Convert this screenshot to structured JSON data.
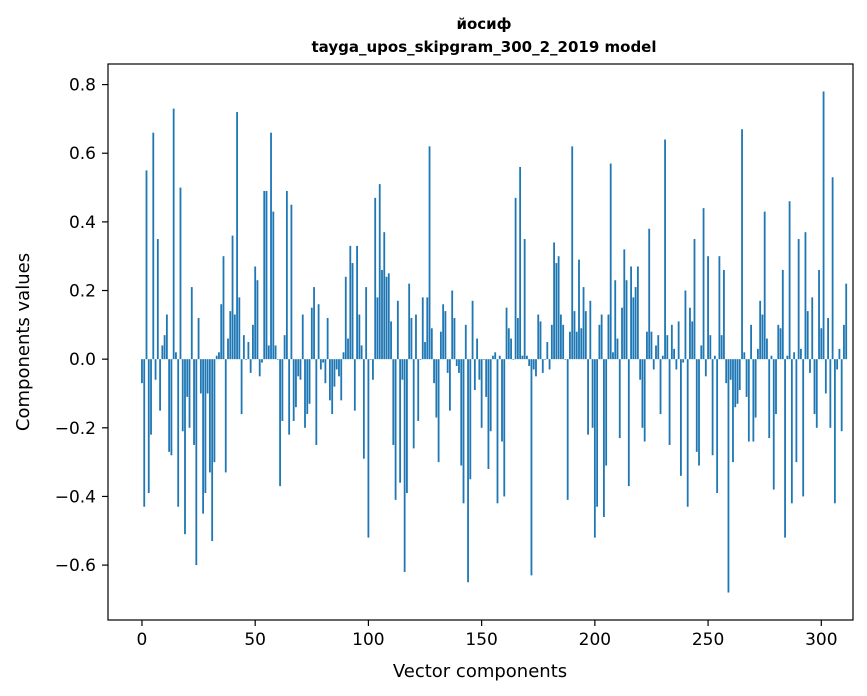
{
  "chart_data": {
    "type": "bar",
    "title": "йосиф",
    "subtitle": "tayga_upos_skipgram_300_2_2019 model",
    "xlabel": "Vector components",
    "ylabel": "Components values",
    "xlim": [
      -15,
      314
    ],
    "ylim": [
      -0.76,
      0.86
    ],
    "x_ticks": [
      {
        "value": 0,
        "label": "0"
      },
      {
        "value": 50,
        "label": "50"
      },
      {
        "value": 100,
        "label": "100"
      },
      {
        "value": 150,
        "label": "150"
      },
      {
        "value": 200,
        "label": "200"
      },
      {
        "value": 250,
        "label": "250"
      },
      {
        "value": 300,
        "label": "300"
      }
    ],
    "y_ticks": [
      {
        "value": -0.6,
        "label": "−0.6"
      },
      {
        "value": -0.4,
        "label": "−0.4"
      },
      {
        "value": -0.2,
        "label": "−0.2"
      },
      {
        "value": 0.0,
        "label": "0.0"
      },
      {
        "value": 0.2,
        "label": "0.2"
      },
      {
        "value": 0.4,
        "label": "0.4"
      },
      {
        "value": 0.6,
        "label": "0.6"
      },
      {
        "value": 0.8,
        "label": "0.8"
      }
    ],
    "bar_color": "#1f77b4",
    "grid": false,
    "values": [
      -0.07,
      -0.43,
      0.55,
      -0.39,
      -0.22,
      0.66,
      -0.06,
      0.35,
      -0.15,
      0.04,
      0.07,
      0.13,
      -0.27,
      -0.28,
      0.73,
      0.02,
      -0.43,
      0.5,
      -0.21,
      -0.51,
      -0.11,
      -0.2,
      0.21,
      -0.25,
      -0.6,
      0.12,
      -0.1,
      -0.45,
      -0.39,
      -0.1,
      -0.33,
      -0.53,
      -0.3,
      0.01,
      0.02,
      0.16,
      0.3,
      -0.33,
      0.06,
      0.14,
      0.36,
      0.13,
      0.72,
      0.18,
      -0.16,
      0.07,
      0.0,
      0.05,
      -0.04,
      0.1,
      0.27,
      0.23,
      -0.05,
      -0.01,
      0.49,
      0.49,
      0.04,
      0.66,
      0.43,
      0.04,
      0.0,
      -0.37,
      -0.18,
      0.07,
      0.49,
      -0.22,
      0.45,
      -0.18,
      -0.14,
      -0.05,
      -0.06,
      0.13,
      -0.2,
      -0.16,
      -0.13,
      0.15,
      0.21,
      -0.25,
      0.16,
      -0.03,
      -0.01,
      -0.07,
      0.12,
      -0.12,
      -0.16,
      -0.08,
      -0.03,
      -0.05,
      -0.12,
      0.02,
      0.24,
      0.06,
      0.33,
      0.28,
      -0.15,
      0.33,
      0.13,
      0.04,
      -0.29,
      0.21,
      -0.52,
      0.0,
      -0.06,
      0.47,
      0.18,
      0.51,
      0.26,
      0.37,
      0.24,
      0.25,
      0.11,
      -0.25,
      -0.41,
      0.17,
      -0.36,
      -0.06,
      -0.62,
      -0.39,
      0.22,
      0.12,
      -0.26,
      0.13,
      -0.18,
      0.0,
      0.18,
      0.05,
      0.18,
      0.62,
      0.09,
      -0.07,
      -0.17,
      -0.3,
      0.08,
      0.16,
      0.14,
      -0.04,
      -0.15,
      0.2,
      0.12,
      -0.02,
      -0.04,
      -0.31,
      -0.42,
      0.1,
      -0.65,
      -0.35,
      0.17,
      -0.09,
      0.06,
      -0.06,
      -0.2,
      0.0,
      -0.11,
      -0.32,
      -0.21,
      0.01,
      0.02,
      -0.42,
      0.01,
      -0.24,
      -0.4,
      0.15,
      0.09,
      0.06,
      0.0,
      0.47,
      0.12,
      0.56,
      0.01,
      0.35,
      0.01,
      -0.02,
      -0.63,
      -0.03,
      -0.05,
      0.13,
      0.11,
      -0.04,
      0.0,
      0.05,
      -0.03,
      0.1,
      0.34,
      0.28,
      0.3,
      0.13,
      0.1,
      0.0,
      -0.41,
      0.08,
      0.62,
      0.14,
      0.08,
      0.29,
      0.09,
      0.21,
      0.14,
      -0.22,
      0.17,
      -0.2,
      -0.52,
      -0.43,
      0.1,
      0.13,
      -0.46,
      -0.31,
      0.13,
      0.57,
      0.02,
      0.23,
      0.06,
      -0.23,
      0.15,
      0.32,
      0.23,
      -0.37,
      0.27,
      0.18,
      0.21,
      0.27,
      -0.06,
      -0.2,
      -0.24,
      0.08,
      0.38,
      0.08,
      -0.03,
      0.04,
      0.07,
      -0.16,
      0.01,
      0.64,
      0.07,
      -0.25,
      0.1,
      0.03,
      -0.03,
      0.11,
      -0.34,
      -0.01,
      0.2,
      -0.43,
      0.15,
      0.11,
      0.35,
      -0.27,
      -0.31,
      0.04,
      0.44,
      -0.05,
      0.3,
      0.07,
      -0.28,
      0.01,
      -0.39,
      0.3,
      0.07,
      0.26,
      -0.07,
      -0.68,
      -0.06,
      -0.3,
      -0.14,
      -0.13,
      -0.09,
      0.67,
      0.02,
      -0.11,
      -0.24,
      0.1,
      -0.24,
      -0.17,
      0.03,
      0.17,
      0.13,
      0.43,
      0.06,
      -0.23,
      0.01,
      -0.38,
      -0.16,
      0.1,
      0.09,
      0.26,
      -0.52,
      0.01,
      0.46,
      -0.42,
      0.02,
      -0.3,
      0.35,
      0.03,
      -0.4,
      0.37,
      0.14,
      -0.04,
      0.18,
      -0.16,
      -0.2,
      0.26,
      0.09,
      0.78,
      -0.1,
      0.12,
      -0.2,
      0.53,
      -0.42,
      -0.03,
      0.03,
      -0.21,
      0.1,
      0.22
    ]
  }
}
